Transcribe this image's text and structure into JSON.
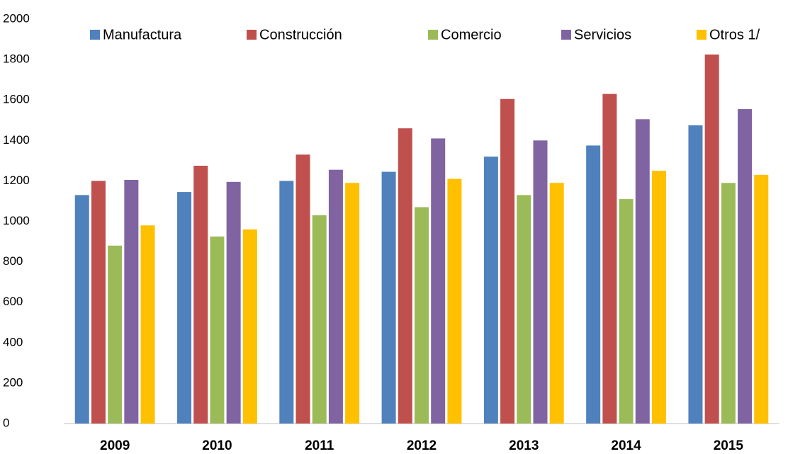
{
  "chart_data": {
    "type": "bar",
    "categories": [
      "2009",
      "2010",
      "2011",
      "2012",
      "2013",
      "2014",
      "2015"
    ],
    "series": [
      {
        "name": "Manufactura",
        "color": "#4f81bd",
        "values": [
          1130,
          1145,
          1200,
          1245,
          1320,
          1375,
          1475
        ]
      },
      {
        "name": "Construcción",
        "color": "#c0504d",
        "values": [
          1200,
          1275,
          1330,
          1460,
          1605,
          1630,
          1825
        ]
      },
      {
        "name": "Comercio",
        "color": "#9bbb59",
        "values": [
          880,
          925,
          1030,
          1070,
          1130,
          1110,
          1190
        ]
      },
      {
        "name": "Servicios",
        "color": "#8064a2",
        "values": [
          1205,
          1195,
          1255,
          1410,
          1400,
          1505,
          1555
        ]
      },
      {
        "name": "Otros 1/",
        "color": "#ffc000",
        "values": [
          980,
          960,
          1190,
          1210,
          1190,
          1250,
          1230
        ]
      }
    ],
    "ylim": [
      0,
      2000
    ],
    "yticks": [
      0,
      200,
      400,
      600,
      800,
      1000,
      1200,
      1400,
      1600,
      1800,
      2000
    ],
    "grid": false,
    "legend": "top"
  }
}
